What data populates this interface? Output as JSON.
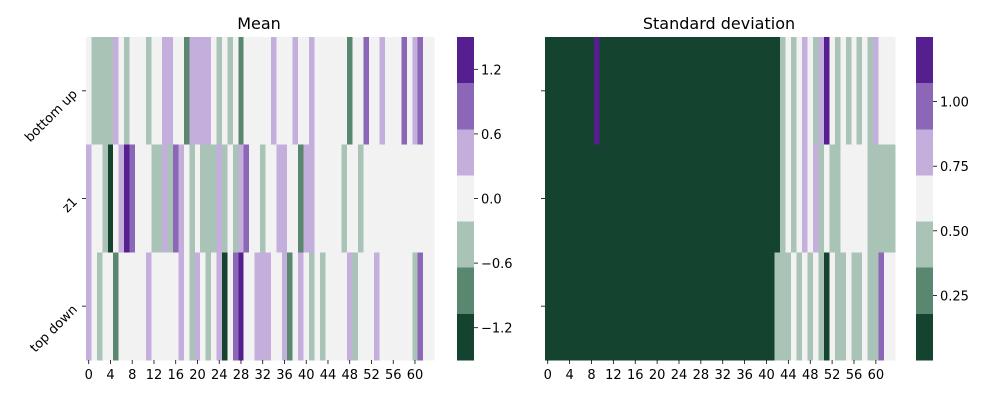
{
  "palette": [
    "#14432f",
    "#5a8770",
    "#a9c4b6",
    "#f2f2f2",
    "#c4aedc",
    "#8c67b8",
    "#561f8f"
  ],
  "chart_data": [
    {
      "type": "heatmap",
      "title": "Mean",
      "rows": [
        "bottom up",
        "z1",
        "top down"
      ],
      "n_cols": 64,
      "x_tick_labels": [
        "0",
        "4",
        "8",
        "12",
        "16",
        "20",
        "24",
        "28",
        "32",
        "36",
        "40",
        "44",
        "48",
        "52",
        "56",
        "60"
      ],
      "levels": [
        [
          3,
          2,
          2,
          2,
          2,
          4,
          3,
          2,
          3,
          3,
          3,
          2,
          3,
          3,
          4,
          4,
          3,
          3,
          1,
          4,
          4,
          4,
          4,
          3,
          2,
          3,
          2,
          3,
          1,
          3,
          3,
          3,
          3,
          3,
          4,
          3,
          3,
          3,
          4,
          3,
          3,
          4,
          3,
          3,
          3,
          3,
          3,
          3,
          1,
          3,
          3,
          5,
          3,
          3,
          4,
          3,
          3,
          3,
          5,
          3,
          4,
          5,
          3,
          3
        ],
        [
          4,
          3,
          3,
          2,
          0,
          3,
          4,
          6,
          5,
          3,
          3,
          3,
          2,
          2,
          4,
          2,
          5,
          4,
          3,
          2,
          3,
          2,
          2,
          2,
          4,
          2,
          3,
          2,
          4,
          5,
          3,
          3,
          2,
          3,
          3,
          4,
          4,
          3,
          3,
          1,
          4,
          4,
          3,
          3,
          3,
          3,
          3,
          2,
          3,
          3,
          2,
          3,
          3,
          3,
          3,
          3,
          3,
          3,
          3,
          3,
          3,
          3,
          3,
          3
        ],
        [
          4,
          3,
          2,
          3,
          3,
          1,
          3,
          3,
          3,
          3,
          3,
          4,
          3,
          3,
          3,
          3,
          3,
          4,
          3,
          2,
          4,
          3,
          2,
          3,
          4,
          0,
          3,
          5,
          6,
          3,
          3,
          4,
          4,
          4,
          3,
          3,
          4,
          1,
          3,
          4,
          3,
          2,
          3,
          2,
          3,
          3,
          3,
          3,
          4,
          2,
          3,
          3,
          3,
          4,
          3,
          3,
          3,
          3,
          3,
          3,
          2,
          5,
          3,
          3
        ]
      ],
      "colorbar": {
        "vmin": -1.5,
        "vmax": 1.5,
        "ticks": [
          1.2,
          0.6,
          0.0,
          -0.6,
          -1.2
        ],
        "tick_labels": [
          "1.2",
          "0.6",
          "0.0",
          "−0.6",
          "−1.2"
        ]
      }
    },
    {
      "type": "heatmap",
      "title": "Standard deviation",
      "rows": [
        "bottom up",
        "z1",
        "top down"
      ],
      "n_cols": 64,
      "x_tick_labels": [
        "0",
        "4",
        "8",
        "12",
        "16",
        "20",
        "24",
        "28",
        "32",
        "36",
        "40",
        "44",
        "48",
        "52",
        "56",
        "60"
      ],
      "levels": [
        [
          0,
          0,
          0,
          0,
          0,
          0,
          0,
          0,
          0,
          6,
          0,
          0,
          0,
          0,
          0,
          0,
          0,
          0,
          0,
          0,
          0,
          0,
          0,
          0,
          0,
          0,
          0,
          0,
          0,
          0,
          0,
          0,
          0,
          0,
          0,
          0,
          0,
          0,
          0,
          0,
          0,
          0,
          0,
          2,
          3,
          2,
          3,
          4,
          3,
          2,
          4,
          6,
          3,
          2,
          3,
          2,
          3,
          2,
          3,
          2,
          4,
          3,
          3,
          3
        ],
        [
          0,
          0,
          0,
          0,
          0,
          0,
          0,
          0,
          0,
          0,
          0,
          0,
          0,
          0,
          0,
          0,
          0,
          0,
          0,
          0,
          0,
          0,
          0,
          0,
          0,
          0,
          0,
          0,
          0,
          0,
          0,
          0,
          0,
          0,
          0,
          0,
          0,
          0,
          0,
          0,
          0,
          0,
          0,
          2,
          3,
          2,
          3,
          4,
          3,
          4,
          2,
          3,
          2,
          2,
          3,
          3,
          3,
          3,
          3,
          2,
          2,
          2,
          2,
          2
        ],
        [
          0,
          0,
          0,
          0,
          0,
          0,
          0,
          0,
          0,
          0,
          0,
          0,
          0,
          0,
          0,
          0,
          0,
          0,
          0,
          0,
          0,
          0,
          0,
          0,
          0,
          0,
          0,
          0,
          0,
          0,
          0,
          0,
          0,
          0,
          0,
          0,
          0,
          0,
          0,
          0,
          0,
          0,
          2,
          2,
          2,
          3,
          2,
          3,
          2,
          3,
          2,
          0,
          3,
          2,
          2,
          3,
          2,
          2,
          3,
          2,
          2,
          5,
          3,
          3
        ]
      ],
      "colorbar": {
        "vmin": 0.0,
        "vmax": 1.25,
        "ticks": [
          1.0,
          0.75,
          0.5,
          0.25
        ],
        "tick_labels": [
          "1.00",
          "0.75",
          "0.50",
          "0.25"
        ]
      }
    }
  ]
}
